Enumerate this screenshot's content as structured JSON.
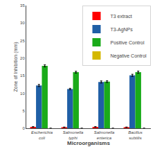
{
  "chart_data": {
    "type": "bar",
    "categories": [
      "Escherichia\ncoli",
      "Salmonella\ntyphi",
      "Salmonella\nenterica",
      "Bacillus\nsubtilis"
    ],
    "series": [
      {
        "name": "T3 extract",
        "color": "#ff0000",
        "values": [
          0.4,
          0.3,
          0.4,
          0.3
        ],
        "errors": [
          0.05,
          0.05,
          0.05,
          0.05
        ]
      },
      {
        "name": "T3-AgNPs",
        "color": "#1f5fa6",
        "values": [
          12.2,
          11.2,
          13.2,
          15.1
        ],
        "errors": [
          0.3,
          0.2,
          0.3,
          0.3
        ]
      },
      {
        "name": "Positive Control",
        "color": "#1aab1a",
        "values": [
          17.8,
          16.0,
          13.3,
          16.0
        ],
        "errors": [
          0.3,
          0.25,
          0.25,
          0.3
        ]
      },
      {
        "name": "Negative Control",
        "color": "#d4b800",
        "values": [
          0.0,
          0.0,
          0.0,
          0.0
        ],
        "errors": [
          0.0,
          0.0,
          0.0,
          0.0
        ]
      }
    ],
    "xlabel": "Microorganisms",
    "ylabel": "Zone of Inhibition (mm)",
    "ylim": [
      0,
      35
    ],
    "yticks": [
      0,
      5,
      10,
      15,
      20,
      25,
      30,
      35
    ],
    "grid": false,
    "legend": "upper right"
  }
}
